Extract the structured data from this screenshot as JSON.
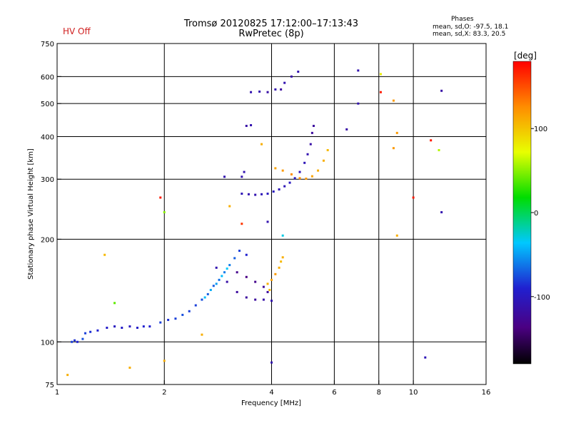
{
  "header": {
    "title_line1": "Tromsø 20120825 17:12:00–17:13:43",
    "title_line2": "RwPretec (8p)",
    "status": "HV Off",
    "status_color": "#d02020",
    "phases_heading": "Phases",
    "phases_line1": "mean, sd,O: -97.5, 18.1",
    "phases_line2": "mean, sd,X:  83.3, 20.5"
  },
  "chart_data": {
    "type": "scatter",
    "title": "Tromsø 20120825 17:12:00–17:13:43",
    "subtitle": "RwPretec (8p)",
    "xlabel": "Frequency [MHz]",
    "ylabel": "Stationary phase Virtual Height [km]",
    "x_scale": "log",
    "y_scale": "log",
    "xlim": [
      1,
      16
    ],
    "ylim": [
      75,
      750
    ],
    "x_ticks": [
      1,
      2,
      4,
      6,
      8,
      10,
      16
    ],
    "y_ticks": [
      75,
      100,
      200,
      300,
      400,
      500,
      600,
      750
    ],
    "x_grid": [
      2,
      4,
      6,
      8,
      10
    ],
    "y_grid": [
      100,
      200,
      300,
      400,
      500,
      600
    ],
    "colorbar": {
      "label": "[deg]",
      "range": [
        -180,
        180
      ],
      "ticks": [
        100,
        0,
        -100
      ],
      "colormap": "rainbow (black-purple-blue-cyan-green-yellow-orange-red)"
    },
    "series": [
      {
        "points": [
          [
            1.1,
            100,
            -80
          ],
          [
            1.12,
            101,
            -85
          ],
          [
            1.14,
            100,
            -90
          ],
          [
            1.18,
            102,
            -75
          ],
          [
            1.2,
            106,
            -80
          ],
          [
            1.24,
            107,
            -85
          ],
          [
            1.3,
            108,
            -90
          ],
          [
            1.38,
            110,
            -95
          ],
          [
            1.45,
            111,
            -100
          ],
          [
            1.52,
            110,
            -95
          ],
          [
            1.6,
            111,
            -100
          ],
          [
            1.68,
            110,
            -95
          ],
          [
            1.75,
            111,
            -90
          ],
          [
            1.82,
            111,
            -90
          ],
          [
            1.95,
            114,
            -80
          ],
          [
            2.05,
            116,
            -85
          ],
          [
            2.15,
            117,
            -80
          ],
          [
            2.25,
            120,
            -75
          ],
          [
            2.35,
            123,
            -80
          ],
          [
            2.45,
            128,
            -80
          ],
          [
            2.55,
            133,
            -75
          ],
          [
            2.65,
            138,
            -70
          ],
          [
            2.75,
            146,
            -70
          ],
          [
            2.85,
            152,
            -65
          ],
          [
            2.95,
            160,
            -60
          ],
          [
            3.05,
            168,
            -60
          ],
          [
            3.15,
            176,
            -70
          ],
          [
            3.25,
            185,
            -80
          ],
          [
            3.4,
            180,
            -90
          ],
          [
            2.6,
            135,
            -40
          ],
          [
            2.7,
            142,
            -45
          ],
          [
            2.8,
            148,
            -50
          ],
          [
            2.9,
            156,
            -40
          ],
          [
            3.0,
            164,
            -35
          ],
          [
            2.8,
            165,
            -110
          ],
          [
            3.0,
            150,
            -115
          ],
          [
            3.2,
            140,
            -120
          ],
          [
            3.4,
            135,
            -120
          ],
          [
            3.6,
            133,
            -120
          ],
          [
            3.8,
            133,
            -115
          ],
          [
            3.2,
            160,
            -130
          ],
          [
            3.4,
            155,
            -135
          ],
          [
            3.6,
            150,
            -130
          ],
          [
            3.8,
            145,
            -125
          ],
          [
            3.9,
            140,
            -120
          ],
          [
            4.0,
            132,
            -110
          ],
          [
            3.9,
            148,
            110
          ],
          [
            4.0,
            152,
            115
          ],
          [
            4.1,
            158,
            120
          ],
          [
            4.2,
            165,
            110
          ],
          [
            4.25,
            172,
            105
          ],
          [
            4.3,
            177,
            110
          ],
          [
            3.95,
            142,
            105
          ],
          [
            3.3,
            272,
            -105
          ],
          [
            3.45,
            271,
            -110
          ],
          [
            3.6,
            270,
            -110
          ],
          [
            3.75,
            271,
            -105
          ],
          [
            3.9,
            272,
            -100
          ],
          [
            4.05,
            276,
            -100
          ],
          [
            4.2,
            280,
            -105
          ],
          [
            4.35,
            286,
            -105
          ],
          [
            4.5,
            293,
            -100
          ],
          [
            4.65,
            302,
            -100
          ],
          [
            4.8,
            315,
            -105
          ],
          [
            4.95,
            335,
            -105
          ],
          [
            5.05,
            355,
            -110
          ],
          [
            5.15,
            380,
            -115
          ],
          [
            5.2,
            410,
            -120
          ],
          [
            5.25,
            430,
            -120
          ],
          [
            3.3,
            305,
            -110
          ],
          [
            3.35,
            315,
            -110
          ],
          [
            4.1,
            323,
            115
          ],
          [
            4.3,
            318,
            120
          ],
          [
            4.55,
            310,
            125
          ],
          [
            4.8,
            302,
            125
          ],
          [
            5.0,
            301,
            120
          ],
          [
            5.2,
            306,
            115
          ],
          [
            5.4,
            318,
            110
          ],
          [
            5.6,
            340,
            110
          ],
          [
            5.75,
            365,
            105
          ],
          [
            3.4,
            430,
            -115
          ],
          [
            3.5,
            432,
            -110
          ],
          [
            3.5,
            540,
            -110
          ],
          [
            3.7,
            542,
            -110
          ],
          [
            3.9,
            540,
            -115
          ],
          [
            4.1,
            550,
            -110
          ],
          [
            4.35,
            575,
            -110
          ],
          [
            4.55,
            600,
            -115
          ],
          [
            4.75,
            620,
            -110
          ],
          [
            4.25,
            550,
            -120
          ],
          [
            6.5,
            420,
            -115
          ],
          [
            7.0,
            625,
            -110
          ],
          [
            7.0,
            500,
            -110
          ],
          [
            8.1,
            540,
            170
          ],
          [
            8.1,
            610,
            80
          ],
          [
            8.8,
            510,
            120
          ],
          [
            9.0,
            410,
            120
          ],
          [
            8.8,
            370,
            120
          ],
          [
            11.2,
            390,
            170
          ],
          [
            11.8,
            365,
            60
          ],
          [
            12.0,
            545,
            -115
          ],
          [
            12.0,
            240,
            -110
          ],
          [
            10.8,
            90,
            -105
          ],
          [
            9.0,
            205,
            110
          ],
          [
            10.0,
            265,
            170
          ],
          [
            1.95,
            265,
            170
          ],
          [
            2.0,
            240,
            50
          ],
          [
            3.05,
            250,
            110
          ],
          [
            3.3,
            222,
            160
          ],
          [
            4.3,
            205,
            -30
          ],
          [
            1.36,
            180,
            105
          ],
          [
            1.45,
            130,
            40
          ],
          [
            1.6,
            84,
            110
          ],
          [
            2.0,
            88,
            110
          ],
          [
            2.55,
            105,
            110
          ],
          [
            1.07,
            80,
            110
          ],
          [
            4.0,
            87,
            -110
          ],
          [
            2.95,
            305,
            -110
          ],
          [
            3.75,
            380,
            110
          ],
          [
            3.9,
            225,
            -110
          ]
        ]
      }
    ]
  }
}
